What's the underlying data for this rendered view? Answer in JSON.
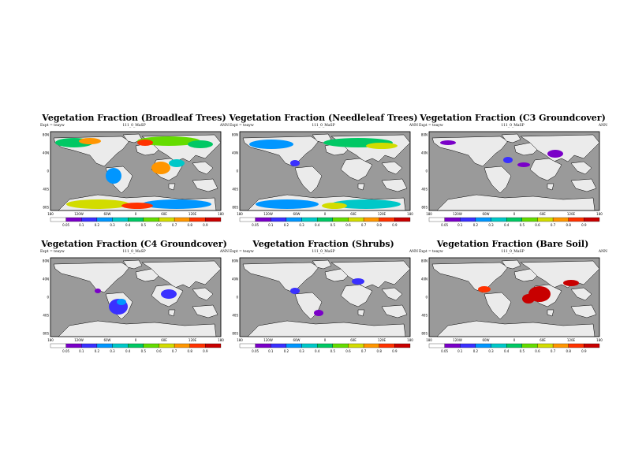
{
  "colors": {
    "ocean": "#9a9a9a",
    "land": "#ebebeb",
    "palette": [
      "#ffffff",
      "#7a00c8",
      "#3a30ff",
      "#0096ff",
      "#00c8c8",
      "#00c864",
      "#64dc00",
      "#d2dc00",
      "#ff9600",
      "#ff3200",
      "#c80000"
    ]
  },
  "common": {
    "expt": "Expt = teayw",
    "run": "111_0_MaSP",
    "period": "ANN",
    "lon_ticks": [
      "180",
      "120W",
      "60W",
      "0",
      "60E",
      "120E",
      "180"
    ],
    "lat_ticks": [
      "80N",
      "40N",
      "0",
      "40S",
      "80S"
    ]
  },
  "panels": [
    {
      "title": "Vegetation Fraction (Broadleaf Trees)",
      "cbar": [
        "0.05",
        "0.1",
        "0.2",
        "0.3",
        "0.4",
        "0.5",
        "0.6",
        "0.7",
        "0.8",
        "0.9"
      ]
    },
    {
      "title": "Vegetation Fraction (Needleleaf Trees)",
      "cbar": [
        "0.05",
        "0.1",
        "0.2",
        "0.3",
        "0.4",
        "0.5",
        "0.6",
        "0.7",
        "0.8",
        "0.9"
      ]
    },
    {
      "title": "Vegetation Fraction (C3 Groundcover)",
      "cbar": [
        "0.05",
        "0.1",
        "0.2",
        "0.3",
        "0.4",
        "0.5",
        "0.6",
        "0.7",
        "0.8",
        "0.9"
      ]
    },
    {
      "title": "Vegetation Fraction (C4 Groundcover)",
      "cbar": [
        "0.05",
        "0.1",
        "0.2",
        "0.3",
        "0.4",
        "0.5",
        "0.6",
        "0.7",
        "0.8",
        "0.9"
      ]
    },
    {
      "title": "Vegetation Fraction (Shrubs)",
      "cbar": [
        "0.05",
        "0.1",
        "0.2",
        "0.3",
        "0.4",
        "0.5",
        "0.6",
        "0.7",
        "0.8",
        "0.9"
      ]
    },
    {
      "title": "Vegetation Fraction (Bare Soil)",
      "cbar": [
        "0.05",
        "0.1",
        "0.2",
        "0.3",
        "0.4",
        "0.5",
        "0.6",
        "0.7",
        "0.8",
        "0.9"
      ]
    }
  ]
}
